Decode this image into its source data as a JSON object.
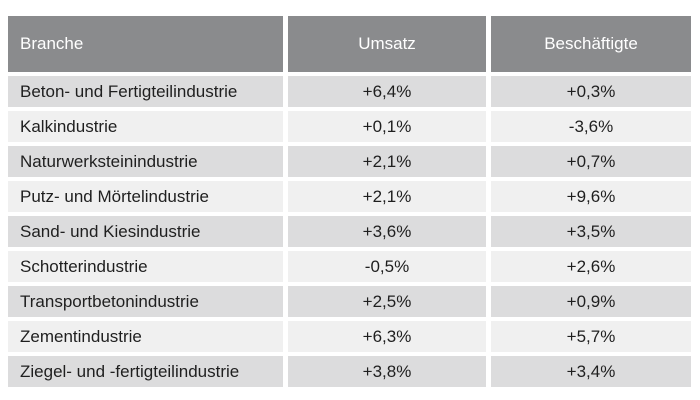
{
  "chart_data": {
    "type": "table",
    "columns": [
      "Branche",
      "Umsatz",
      "Beschäftigte"
    ],
    "rows": [
      [
        "Beton- und Fertigteilindustrie",
        "+6,4%",
        "+0,3%"
      ],
      [
        "Kalkindustrie",
        "+0,1%",
        "-3,6%"
      ],
      [
        "Naturwerksteinindustrie",
        "+2,1%",
        "+0,7%"
      ],
      [
        "Putz- und Mörtelindustrie",
        "+2,1%",
        "+9,6%"
      ],
      [
        "Sand- und Kiesindustrie",
        "+3,6%",
        "+3,5%"
      ],
      [
        "Schotterindustrie",
        "-0,5%",
        "+2,6%"
      ],
      [
        "Transportbetonindustrie",
        "+2,5%",
        "+0,9%"
      ],
      [
        "Zementindustrie",
        "+6,3%",
        "+5,7%"
      ],
      [
        "Ziegel- und -fertigteilindustrie",
        "+3,8%",
        "+3,4%"
      ]
    ]
  },
  "colors": {
    "header_bg": "#8a8b8d",
    "row_odd_bg": "#dcdcdd",
    "row_even_bg": "#f0f0f0",
    "text": "#1f1f1f",
    "header_text": "#ffffff"
  }
}
